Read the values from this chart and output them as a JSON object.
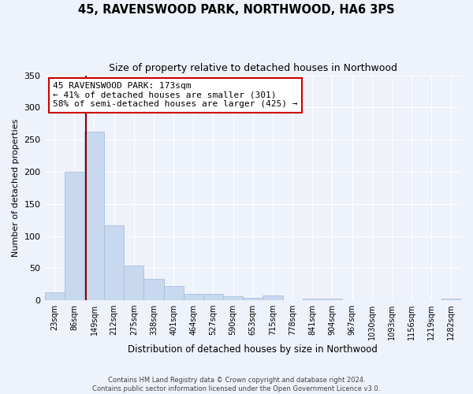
{
  "title": "45, RAVENSWOOD PARK, NORTHWOOD, HA6 3PS",
  "subtitle": "Size of property relative to detached houses in Northwood",
  "xlabel": "Distribution of detached houses by size in Northwood",
  "ylabel": "Number of detached properties",
  "bin_labels": [
    "23sqm",
    "86sqm",
    "149sqm",
    "212sqm",
    "275sqm",
    "338sqm",
    "401sqm",
    "464sqm",
    "527sqm",
    "590sqm",
    "653sqm",
    "715sqm",
    "778sqm",
    "841sqm",
    "904sqm",
    "967sqm",
    "1030sqm",
    "1093sqm",
    "1156sqm",
    "1219sqm",
    "1282sqm"
  ],
  "bar_heights": [
    12,
    200,
    262,
    117,
    54,
    33,
    22,
    10,
    10,
    6,
    4,
    7,
    0,
    3,
    2,
    0,
    0,
    0,
    0,
    0,
    2
  ],
  "bar_color": "#c8d8ee",
  "bar_edge_color": "#a8c0e0",
  "vline_x": 1.58,
  "vline_color": "#8b0000",
  "annotation_title": "45 RAVENSWOOD PARK: 173sqm",
  "annotation_line1": "← 41% of detached houses are smaller (301)",
  "annotation_line2": "58% of semi-detached houses are larger (425) →",
  "annotation_box_color": "#ffffff",
  "annotation_box_edge": "#cc0000",
  "ylim": [
    0,
    350
  ],
  "yticks": [
    0,
    50,
    100,
    150,
    200,
    250,
    300,
    350
  ],
  "footer1": "Contains HM Land Registry data © Crown copyright and database right 2024.",
  "footer2": "Contains public sector information licensed under the Open Government Licence v3.0.",
  "background_color": "#eef2fa",
  "plot_background": "#eef2fa",
  "grid_color": "#ffffff"
}
